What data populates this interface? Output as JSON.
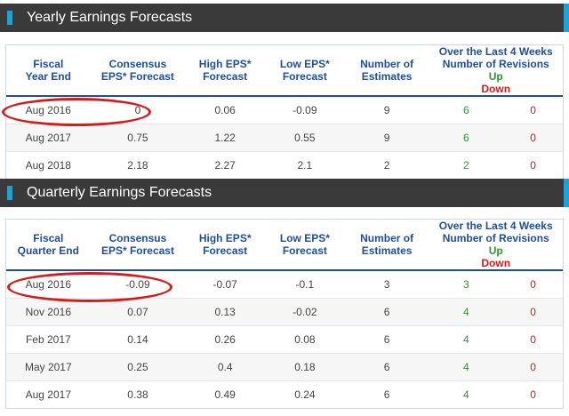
{
  "yearly": {
    "title": "Yearly Earnings Forecasts",
    "headers": {
      "period": [
        "Fiscal",
        "Year End"
      ],
      "consensus": [
        "Consensus",
        "EPS* Forecast"
      ],
      "high": [
        "High EPS*",
        "Forecast"
      ],
      "low": [
        "Low EPS*",
        "Forecast"
      ],
      "estimates": [
        "Number of",
        "Estimates"
      ],
      "revisions": [
        "Over the Last 4 Weeks",
        "Number of Revisions"
      ],
      "up": "Up",
      "down": "Down"
    },
    "rows": [
      {
        "period": "Aug 2016",
        "consensus": "0",
        "high": "0.06",
        "low": "-0.09",
        "estimates": "9",
        "up": "6",
        "down": "0"
      },
      {
        "period": "Aug 2017",
        "consensus": "0.75",
        "high": "1.22",
        "low": "0.55",
        "estimates": "9",
        "up": "6",
        "down": "0"
      },
      {
        "period": "Aug 2018",
        "consensus": "2.18",
        "high": "2.27",
        "low": "2.1",
        "estimates": "2",
        "up": "2",
        "down": "0"
      }
    ]
  },
  "quarterly": {
    "title": "Quarterly Earnings Forecasts",
    "headers": {
      "period": [
        "Fiscal",
        "Quarter End"
      ],
      "consensus": [
        "Consensus",
        "EPS* Forecast"
      ],
      "high": [
        "High EPS*",
        "Forecast"
      ],
      "low": [
        "Low EPS*",
        "Forecast"
      ],
      "estimates": [
        "Number of",
        "Estimates"
      ],
      "revisions": [
        "Over the Last 4 Weeks",
        "Number of Revisions"
      ],
      "up": "Up",
      "down": "Down"
    },
    "rows": [
      {
        "period": "Aug 2016",
        "consensus": "-0.09",
        "high": "-0.07",
        "low": "-0.1",
        "estimates": "3",
        "up": "3",
        "down": "0"
      },
      {
        "period": "Nov 2016",
        "consensus": "0.07",
        "high": "0.13",
        "low": "-0.02",
        "estimates": "6",
        "up": "4",
        "down": "0"
      },
      {
        "period": "Feb 2017",
        "consensus": "0.14",
        "high": "0.26",
        "low": "0.08",
        "estimates": "6",
        "up": "4",
        "down": "0"
      },
      {
        "period": "May 2017",
        "consensus": "0.25",
        "high": "0.4",
        "low": "0.18",
        "estimates": "6",
        "up": "4",
        "down": "0"
      },
      {
        "period": "Aug 2017",
        "consensus": "0.38",
        "high": "0.49",
        "low": "0.24",
        "estimates": "6",
        "up": "4",
        "down": "0"
      }
    ]
  },
  "colors": {
    "header_bg": "#3a3a3a",
    "accent": "#1aa3d8",
    "header_text": "#1f4e9c",
    "up": "#2a9a2a",
    "down": "#d21c1c",
    "annotation": "#d41c1c"
  }
}
